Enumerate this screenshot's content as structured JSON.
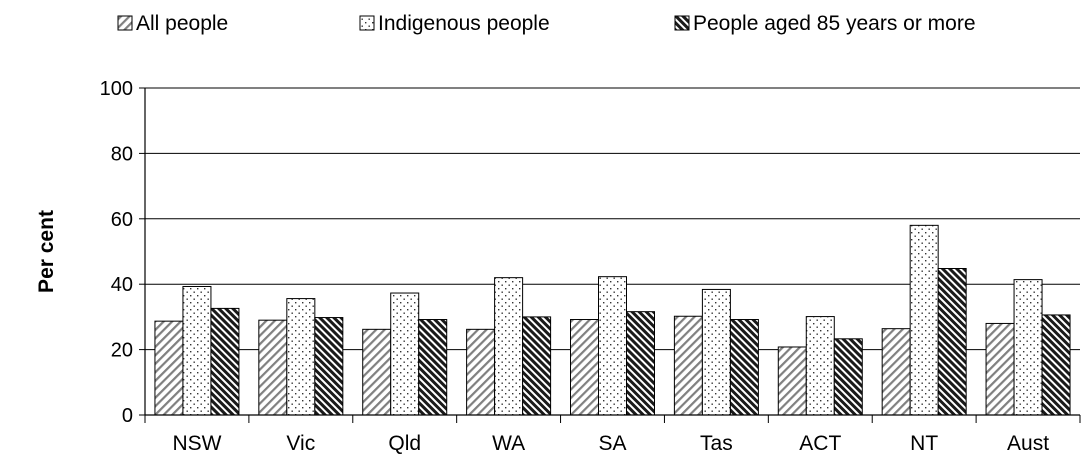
{
  "chart_data": {
    "type": "bar",
    "title": "",
    "xlabel": "",
    "ylabel": "Per cent",
    "ylim": [
      0,
      100
    ],
    "yticks": [
      0,
      20,
      40,
      60,
      80,
      100
    ],
    "grid": true,
    "legend_position": "top",
    "categories": [
      "NSW",
      "Vic",
      "Qld",
      "WA",
      "SA",
      "Tas",
      "ACT",
      "NT",
      "Aust"
    ],
    "series": [
      {
        "name": "All people",
        "pattern": "diagonal-hatch",
        "color": "#888888",
        "values": [
          28.7,
          29.0,
          26.2,
          26.2,
          29.2,
          30.2,
          20.8,
          26.4,
          28.0
        ]
      },
      {
        "name": "Indigenous people",
        "pattern": "dots",
        "color": "#ffffff",
        "values": [
          39.3,
          35.6,
          37.3,
          42.0,
          42.3,
          38.4,
          30.1,
          58.0,
          41.4
        ]
      },
      {
        "name": "People aged 85 years or more",
        "pattern": "dense-diagonal-hatch",
        "color": "#222222",
        "values": [
          32.6,
          29.8,
          29.2,
          30.0,
          31.6,
          29.2,
          23.3,
          44.8,
          30.6
        ]
      }
    ]
  }
}
